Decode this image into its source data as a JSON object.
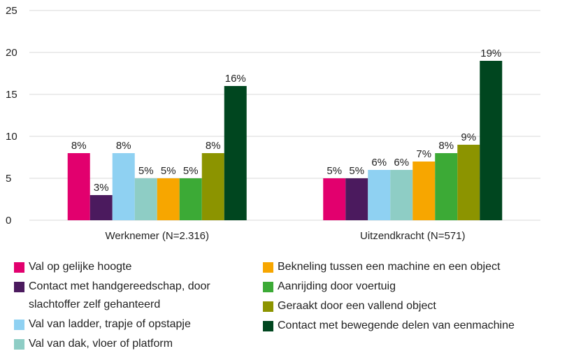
{
  "chart_data": {
    "type": "bar",
    "categories": [
      "Werknemer (N=2.316)",
      "Uitzendkracht (N=571)"
    ],
    "series": [
      {
        "name": "Val op gelijke hoogte",
        "color": "#e2006e",
        "values": [
          8,
          5
        ],
        "value_labels": [
          "8%",
          "5%"
        ]
      },
      {
        "name": "Contact met handgereedschap, door slachtoffer zelf gehanteerd",
        "color": "#4b1a5e",
        "values": [
          3,
          5
        ],
        "value_labels": [
          "3%",
          "5%"
        ]
      },
      {
        "name": "Val van ladder, trapje of opstapje",
        "color": "#8fd1f2",
        "values": [
          8,
          6
        ],
        "value_labels": [
          "8%",
          "6%"
        ]
      },
      {
        "name": "Val van dak, vloer of platform",
        "color": "#8ecdc5",
        "values": [
          5,
          6
        ],
        "value_labels": [
          "5%",
          "6%"
        ]
      },
      {
        "name": "Bekneling tussen een machine en een object",
        "color": "#f7a600",
        "values": [
          5,
          7
        ],
        "value_labels": [
          "5%",
          "7%"
        ]
      },
      {
        "name": "Aanrijding door voertuig",
        "color": "#3caa36",
        "values": [
          5,
          8
        ],
        "value_labels": [
          "5%",
          "8%"
        ]
      },
      {
        "name": "Geraakt door een vallend object",
        "color": "#8c9400",
        "values": [
          8,
          9
        ],
        "value_labels": [
          "8%",
          "9%"
        ]
      },
      {
        "name": "Contact met bewegende delen van eenmachine",
        "color": "#00461f",
        "values": [
          16,
          19
        ],
        "value_labels": [
          "16%",
          "19%"
        ]
      }
    ],
    "ylim": [
      0,
      25
    ],
    "yticks": [
      0,
      5,
      10,
      15,
      20,
      25
    ],
    "grid": true
  }
}
